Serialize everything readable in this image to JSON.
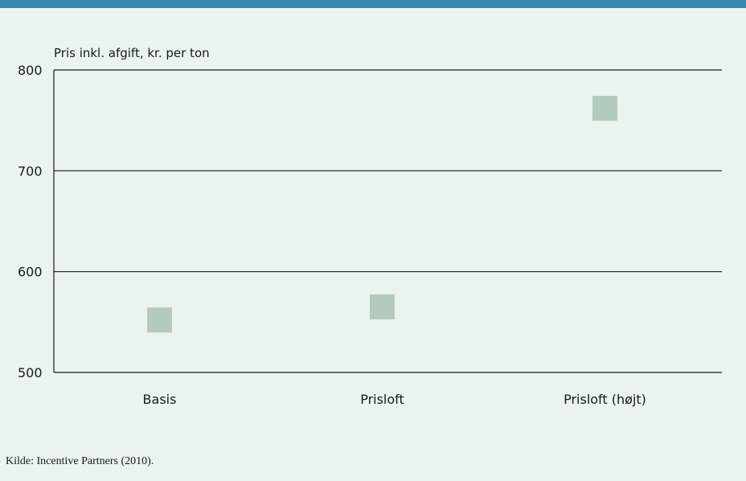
{
  "colors": {
    "top_bar": "#3b86ad",
    "background": "#eaf3ee",
    "marker": "#b3cbbd",
    "line": "#1a1a1a"
  },
  "source": "Kilde: Incentive Partners (2010).",
  "chart_data": {
    "type": "scatter",
    "marker": "square",
    "ylabel": "Pris inkl. afgift, kr. per ton",
    "ylim": [
      500,
      800
    ],
    "yticks": [
      500,
      600,
      700,
      800
    ],
    "grid": true,
    "categories": [
      "Basis",
      "Prisloft",
      "Prisloft (højt)"
    ],
    "series": [
      {
        "values": [
          552,
          565,
          762
        ]
      }
    ]
  }
}
